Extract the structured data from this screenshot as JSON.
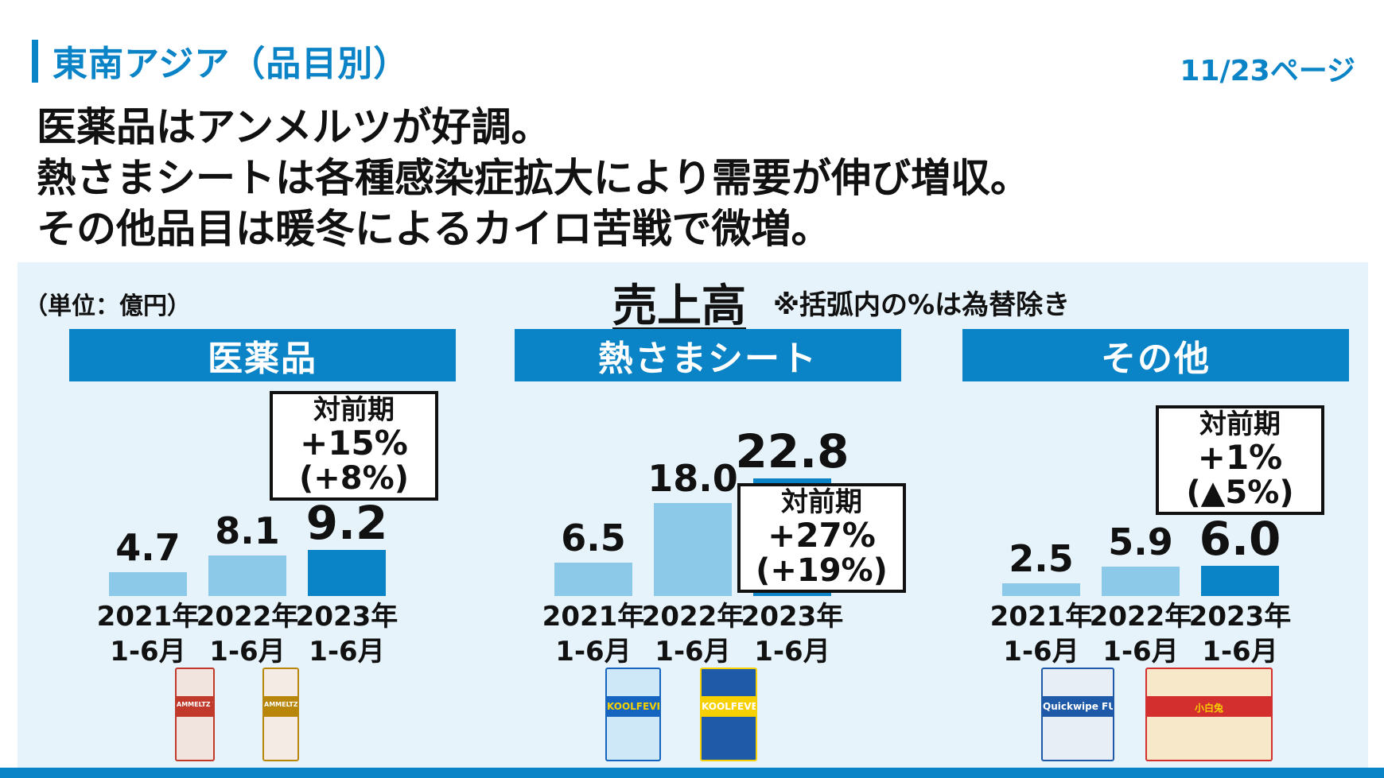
{
  "header": {
    "title": "東南アジア（品目別）",
    "page_number": "11/23ページ"
  },
  "headline": [
    "医薬品はアンメルツが好調。",
    "熱さまシートは各種感染症拡大により需要が伸び増収。",
    "その他品目は暖冬によるカイロ苦戦で微増。"
  ],
  "chart_area": {
    "unit_label": "（単位：億円）",
    "title": "売上高",
    "note": "※括弧内の%は為替除き"
  },
  "colors": {
    "accent": "#0a84c6",
    "bar_previous": "#8cc8e8",
    "bar_current": "#0a84c6",
    "panel_bg": "#e6f3fa"
  },
  "chart_data": [
    {
      "type": "bar",
      "title": "医薬品",
      "categories": [
        "2021年\n1-6月",
        "2022年\n1-6月",
        "2023年\n1-6月"
      ],
      "category_lines": [
        [
          "2021年",
          "1-6月"
        ],
        [
          "2022年",
          "1-6月"
        ],
        [
          "2023年",
          "1-6月"
        ]
      ],
      "values": [
        4.7,
        8.1,
        9.2
      ],
      "value_labels": [
        "4.7",
        "8.1",
        "9.2"
      ],
      "yoy": {
        "heading": "対前期",
        "change": "+15%",
        "fx_excluded": "(+8%)"
      },
      "products": [
        "AMMELTZ YOKO YOKO",
        "AMMELTZ YOKO YOKO GOLD"
      ]
    },
    {
      "type": "bar",
      "title": "熱さまシート",
      "categories": [
        "2021年\n1-6月",
        "2022年\n1-6月",
        "2023年\n1-6月"
      ],
      "category_lines": [
        [
          "2021年",
          "1-6月"
        ],
        [
          "2022年",
          "1-6月"
        ],
        [
          "2023年",
          "1-6月"
        ]
      ],
      "values": [
        6.5,
        18.0,
        22.8
      ],
      "value_labels": [
        "6.5",
        "18.0",
        "22.8"
      ],
      "yoy": {
        "heading": "対前期",
        "change": "+27%",
        "fx_excluded": "(+19%)"
      },
      "products": [
        "KOOLFEVER",
        "KOOLFEVER"
      ]
    },
    {
      "type": "bar",
      "title": "その他",
      "categories": [
        "2021年\n1-6月",
        "2022年\n1-6月",
        "2023年\n1-6月"
      ],
      "category_lines": [
        [
          "2021年",
          "1-6月"
        ],
        [
          "2022年",
          "1-6月"
        ],
        [
          "2023年",
          "1-6月"
        ]
      ],
      "values": [
        2.5,
        5.9,
        6.0
      ],
      "value_labels": [
        "2.5",
        "5.9",
        "6.0"
      ],
      "yoy": {
        "heading": "対前期",
        "change": "+1%",
        "fx_excluded": "(▲5%)"
      },
      "products": [
        "Quickwipe FUKiFUKi",
        "小白兔"
      ]
    }
  ]
}
